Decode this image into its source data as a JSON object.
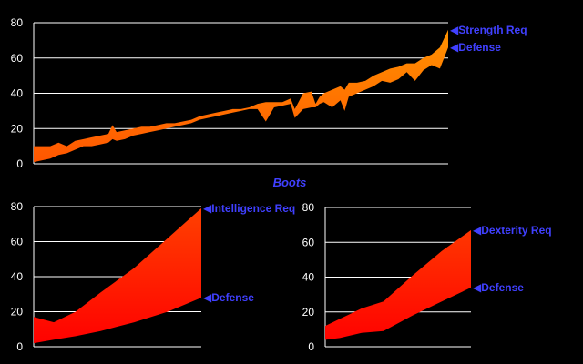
{
  "chart_data": {
    "title": "Boots",
    "colors": {
      "background": "#000000",
      "grid": "#ffffff",
      "legend_text": "#4040ff",
      "fill_low": "#ff0000",
      "fill_high": "#ff9900",
      "inverted_fill": "#1a8fd8"
    },
    "charts": [
      {
        "type": "area",
        "grid": true,
        "ylim": [
          0,
          80
        ],
        "yticks": [
          0,
          20,
          40,
          60,
          80
        ],
        "xlim": [
          0,
          100
        ],
        "series": [
          {
            "name": "Strength Req",
            "x": [
              0,
              4,
              6,
              8,
              10,
              12,
              14,
              16,
              18,
              19,
              20,
              22,
              24,
              26,
              28,
              30,
              32,
              34,
              36,
              38,
              40,
              42,
              44,
              46,
              48,
              50,
              52,
              54,
              56,
              58,
              60,
              62,
              63,
              65,
              67,
              68,
              69,
              70,
              72,
              74,
              75,
              76,
              78,
              80,
              82,
              84,
              86,
              88,
              90,
              92,
              94,
              96,
              98,
              100
            ],
            "values": [
              10,
              10,
              12,
              10,
              13,
              14,
              15,
              16,
              17,
              22,
              18,
              19,
              20,
              21,
              21,
              22,
              23,
              23,
              24,
              25,
              27,
              28,
              29,
              30,
              31,
              31,
              32,
              34,
              35,
              35,
              35,
              37,
              31,
              40,
              41,
              34,
              38,
              40,
              42,
              44,
              42,
              46,
              46,
              47,
              50,
              52,
              54,
              55,
              57,
              57,
              60,
              62,
              66,
              76
            ]
          },
          {
            "name": "Defense",
            "x": [
              0,
              4,
              6,
              8,
              10,
              12,
              14,
              16,
              18,
              19,
              20,
              22,
              24,
              26,
              28,
              30,
              32,
              34,
              36,
              38,
              40,
              42,
              44,
              46,
              48,
              50,
              52,
              54,
              56,
              58,
              60,
              62,
              63,
              65,
              67,
              68,
              69,
              70,
              72,
              74,
              75,
              76,
              78,
              80,
              82,
              84,
              86,
              88,
              90,
              92,
              94,
              96,
              98,
              100
            ],
            "values": [
              1,
              3,
              5,
              6,
              8,
              10,
              10,
              11,
              12,
              14,
              13,
              14,
              16,
              17,
              18,
              19,
              20,
              21,
              22,
              23,
              25,
              26,
              27,
              28,
              29,
              30,
              31,
              31,
              24,
              32,
              33,
              34,
              26,
              31,
              32,
              32,
              34,
              35,
              32,
              36,
              30,
              38,
              40,
              42,
              44,
              47,
              46,
              48,
              52,
              47,
              53,
              56,
              54,
              66
            ]
          }
        ]
      },
      {
        "type": "area",
        "grid": true,
        "ylim": [
          0,
          80
        ],
        "yticks": [
          0,
          20,
          40,
          60,
          80
        ],
        "xlim": [
          0,
          100
        ],
        "series": [
          {
            "name": "Intelligence Req",
            "x": [
              0,
              12,
              25,
              40,
              60,
              80,
              100
            ],
            "values": [
              17,
              14,
              20,
              31,
              45,
              62,
              79
            ]
          },
          {
            "name": "Defense",
            "x": [
              0,
              12,
              25,
              40,
              60,
              80,
              100
            ],
            "values": [
              2,
              4,
              6,
              9,
              14,
              20,
              28
            ]
          }
        ]
      },
      {
        "type": "area",
        "grid": true,
        "ylim": [
          0,
          80
        ],
        "yticks": [
          0,
          20,
          40,
          60,
          80
        ],
        "xlim": [
          0,
          100
        ],
        "series": [
          {
            "name": "Dexterity Req",
            "x": [
              0,
              10,
              25,
              40,
              60,
              80,
              100
            ],
            "values": [
              12,
              16,
              22,
              26,
              41,
              55,
              67
            ]
          },
          {
            "name": "Defense",
            "x": [
              0,
              10,
              25,
              40,
              60,
              80,
              100
            ],
            "values": [
              4,
              5,
              8,
              9,
              18,
              26,
              34
            ]
          }
        ]
      }
    ]
  }
}
